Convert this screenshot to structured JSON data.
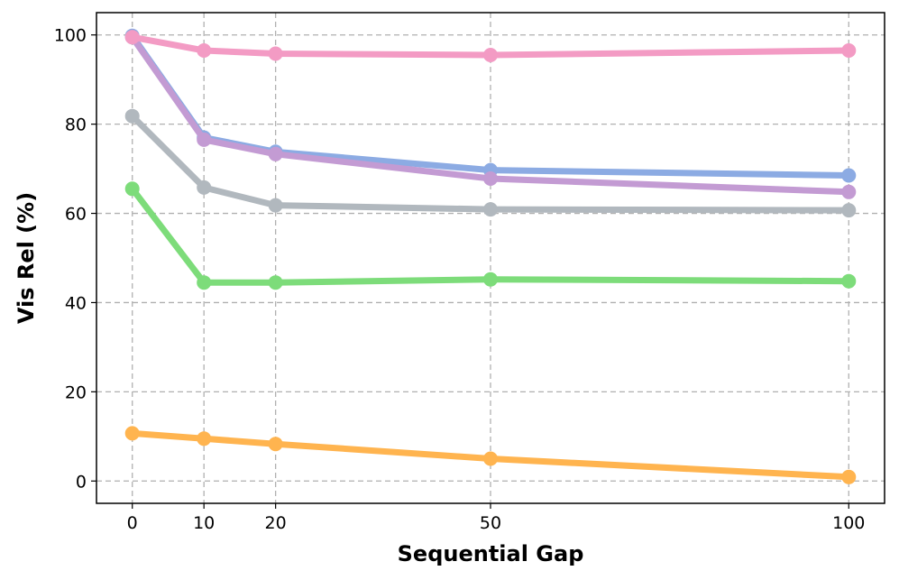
{
  "chart_data": {
    "type": "line",
    "title": "",
    "xlabel": "Sequential Gap",
    "ylabel": "Vis Rel (%)",
    "x": [
      0,
      10,
      20,
      50,
      100
    ],
    "xticks": [
      0,
      10,
      20,
      50,
      100
    ],
    "xtick_labels": [
      "0",
      "10",
      "20",
      "50",
      "100"
    ],
    "yticks": [
      0,
      20,
      40,
      60,
      80,
      100
    ],
    "ytick_labels": [
      "0",
      "20",
      "40",
      "60",
      "80",
      "100"
    ],
    "xlim": [
      -5,
      105
    ],
    "ylim": [
      -5,
      105
    ],
    "grid": true,
    "series": [
      {
        "name": "series-blue",
        "color": "#8cabe3",
        "values": [
          99.8,
          77.0,
          73.8,
          69.7,
          68.5
        ]
      },
      {
        "name": "series-purple",
        "color": "#c39bd3",
        "values": [
          99.5,
          76.5,
          73.3,
          67.8,
          64.8
        ]
      },
      {
        "name": "series-pink",
        "color": "#f39bc4",
        "values": [
          99.5,
          96.5,
          95.8,
          95.5,
          96.5
        ]
      },
      {
        "name": "series-gray",
        "color": "#b1b8be",
        "values": [
          81.8,
          65.8,
          61.8,
          60.9,
          60.7
        ]
      },
      {
        "name": "series-green",
        "color": "#7ddc7a",
        "values": [
          65.5,
          44.5,
          44.5,
          45.2,
          44.8
        ]
      },
      {
        "name": "series-orange",
        "color": "#ffb44f",
        "values": [
          10.7,
          9.5,
          8.3,
          5.0,
          0.9
        ]
      }
    ]
  }
}
